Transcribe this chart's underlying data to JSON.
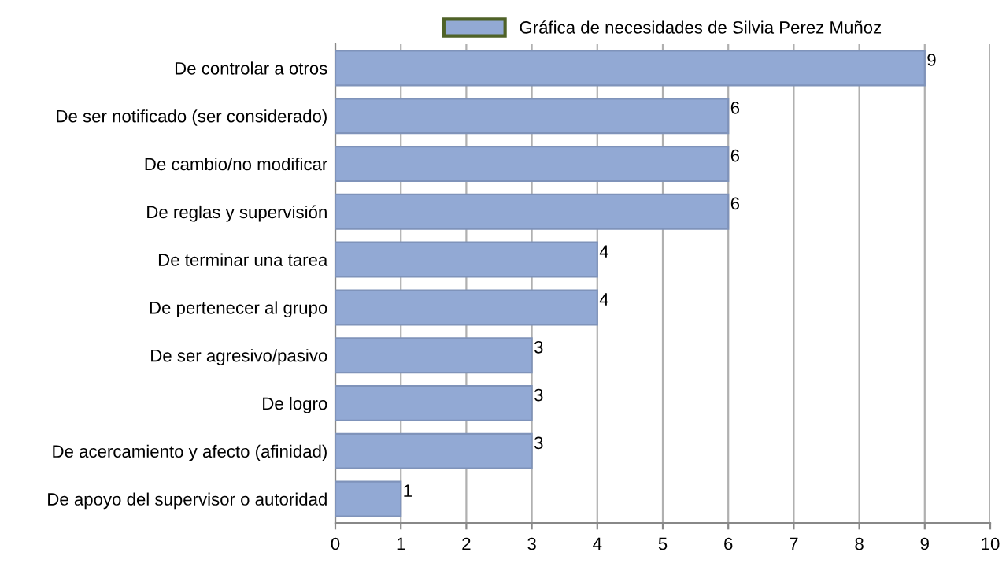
{
  "chart_data": {
    "type": "bar",
    "orientation": "horizontal",
    "categories": [
      "De controlar a otros",
      "De ser notificado (ser considerado)",
      "De cambio/no modificar",
      "De reglas y supervisión",
      "De terminar una tarea",
      "De pertenecer al grupo",
      "De ser agresivo/pasivo",
      "De logro",
      "De acercamiento y afecto (afinidad)",
      "De apoyo del supervisor o autoridad"
    ],
    "series": [
      {
        "name": "Gráfica de necesidades de Silvia Perez Muñoz",
        "color": "#92a9d4",
        "values": [
          9,
          6,
          6,
          6,
          4,
          4,
          3,
          3,
          3,
          1
        ]
      }
    ],
    "xlim": [
      0,
      10
    ],
    "xticks": [
      0,
      1,
      2,
      3,
      4,
      5,
      6,
      7,
      8,
      9,
      10
    ],
    "grid": "x",
    "legend": "top",
    "data_labels": true
  }
}
